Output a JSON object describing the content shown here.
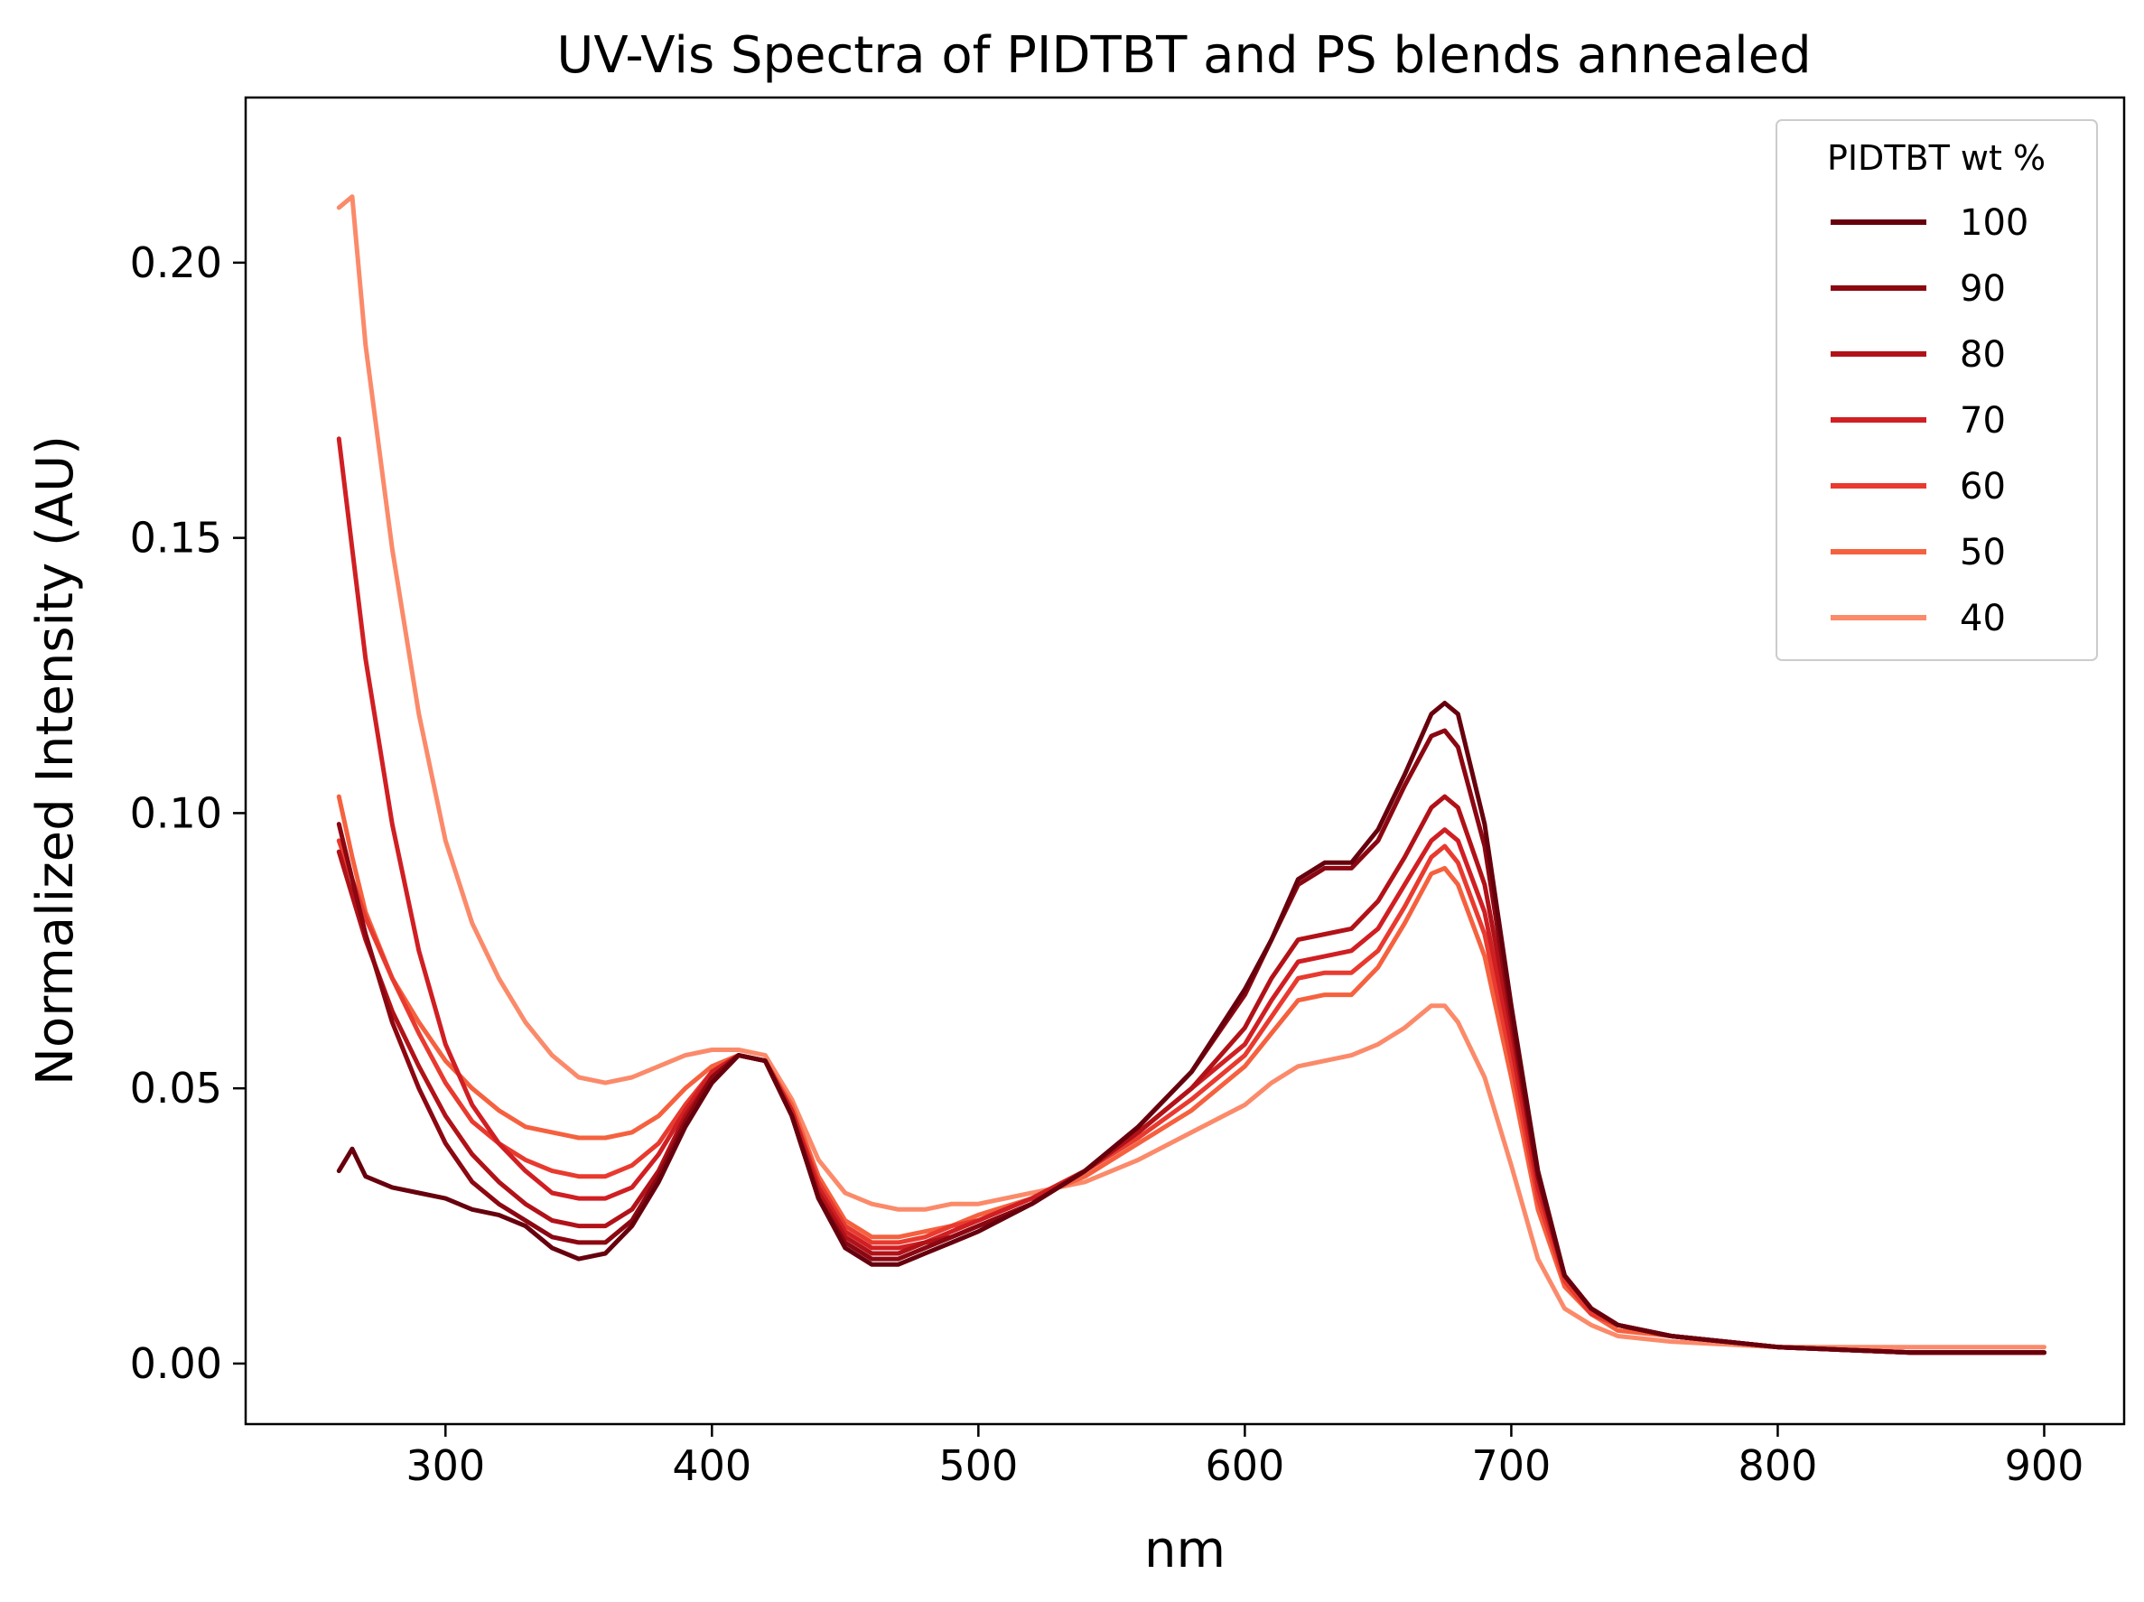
{
  "chart_data": {
    "type": "line",
    "title": "UV-Vis Spectra of PIDTBT and PS blends annealed",
    "xlabel": "nm",
    "ylabel": "Normalized Intensity (AU)",
    "xlim": [
      225,
      930
    ],
    "ylim": [
      -0.011,
      0.23
    ],
    "xticks": [
      300,
      400,
      500,
      600,
      700,
      800,
      900
    ],
    "yticks": [
      0.0,
      0.05,
      0.1,
      0.15,
      0.2
    ],
    "xtick_labels": [
      "300",
      "400",
      "500",
      "600",
      "700",
      "800",
      "900"
    ],
    "ytick_labels": [
      "0.00",
      "0.05",
      "0.10",
      "0.15",
      "0.20"
    ],
    "grid": false,
    "legend": {
      "title": "PIDTBT wt %",
      "position": "top-right"
    },
    "x": [
      260,
      265,
      270,
      280,
      290,
      300,
      310,
      320,
      330,
      340,
      350,
      360,
      370,
      380,
      390,
      400,
      410,
      420,
      430,
      440,
      450,
      460,
      470,
      480,
      490,
      500,
      520,
      540,
      560,
      580,
      600,
      610,
      620,
      630,
      640,
      650,
      660,
      670,
      675,
      680,
      690,
      700,
      710,
      720,
      730,
      740,
      760,
      800,
      850,
      900
    ],
    "series": [
      {
        "name": "100",
        "color": "#67000d",
        "values": [
          0.035,
          0.039,
          0.034,
          0.032,
          0.031,
          0.03,
          0.028,
          0.027,
          0.025,
          0.021,
          0.019,
          0.02,
          0.025,
          0.033,
          0.043,
          0.051,
          0.056,
          0.055,
          0.045,
          0.03,
          0.021,
          0.018,
          0.018,
          0.02,
          0.022,
          0.024,
          0.029,
          0.035,
          0.043,
          0.053,
          0.068,
          0.077,
          0.088,
          0.091,
          0.091,
          0.097,
          0.107,
          0.118,
          0.12,
          0.118,
          0.098,
          0.065,
          0.035,
          0.016,
          0.01,
          0.007,
          0.005,
          0.003,
          0.002,
          0.002
        ]
      },
      {
        "name": "90",
        "color": "#8b0711",
        "values": [
          0.098,
          0.088,
          0.078,
          0.062,
          0.05,
          0.04,
          0.033,
          0.029,
          0.026,
          0.023,
          0.022,
          0.022,
          0.026,
          0.034,
          0.044,
          0.052,
          0.056,
          0.055,
          0.045,
          0.03,
          0.022,
          0.019,
          0.019,
          0.021,
          0.023,
          0.025,
          0.029,
          0.035,
          0.043,
          0.053,
          0.067,
          0.077,
          0.087,
          0.09,
          0.09,
          0.095,
          0.105,
          0.114,
          0.115,
          0.112,
          0.094,
          0.063,
          0.034,
          0.016,
          0.01,
          0.007,
          0.005,
          0.003,
          0.002,
          0.002
        ]
      },
      {
        "name": "80",
        "color": "#b11218",
        "values": [
          0.093,
          0.085,
          0.077,
          0.064,
          0.054,
          0.045,
          0.038,
          0.033,
          0.029,
          0.026,
          0.025,
          0.025,
          0.028,
          0.035,
          0.045,
          0.052,
          0.056,
          0.055,
          0.045,
          0.031,
          0.023,
          0.02,
          0.02,
          0.022,
          0.023,
          0.025,
          0.029,
          0.035,
          0.042,
          0.05,
          0.061,
          0.07,
          0.077,
          0.078,
          0.079,
          0.084,
          0.092,
          0.101,
          0.103,
          0.101,
          0.087,
          0.061,
          0.034,
          0.016,
          0.01,
          0.007,
          0.005,
          0.003,
          0.002,
          0.002
        ]
      },
      {
        "name": "70",
        "color": "#d01f23",
        "values": [
          0.168,
          0.148,
          0.128,
          0.098,
          0.075,
          0.058,
          0.047,
          0.04,
          0.035,
          0.031,
          0.03,
          0.03,
          0.032,
          0.038,
          0.046,
          0.053,
          0.056,
          0.055,
          0.046,
          0.032,
          0.024,
          0.021,
          0.021,
          0.022,
          0.024,
          0.026,
          0.03,
          0.035,
          0.042,
          0.05,
          0.058,
          0.066,
          0.073,
          0.074,
          0.075,
          0.079,
          0.087,
          0.095,
          0.097,
          0.095,
          0.082,
          0.058,
          0.032,
          0.016,
          0.01,
          0.007,
          0.005,
          0.003,
          0.002,
          0.002
        ]
      },
      {
        "name": "60",
        "color": "#e83a2f",
        "values": [
          0.095,
          0.088,
          0.081,
          0.07,
          0.06,
          0.051,
          0.044,
          0.04,
          0.037,
          0.035,
          0.034,
          0.034,
          0.036,
          0.04,
          0.047,
          0.053,
          0.056,
          0.055,
          0.046,
          0.033,
          0.025,
          0.022,
          0.022,
          0.023,
          0.025,
          0.026,
          0.03,
          0.035,
          0.041,
          0.048,
          0.056,
          0.063,
          0.07,
          0.071,
          0.071,
          0.075,
          0.083,
          0.092,
          0.094,
          0.091,
          0.078,
          0.055,
          0.03,
          0.015,
          0.009,
          0.007,
          0.005,
          0.003,
          0.002,
          0.002
        ]
      },
      {
        "name": "50",
        "color": "#f5613f",
        "values": [
          0.103,
          0.092,
          0.082,
          0.07,
          0.062,
          0.055,
          0.05,
          0.046,
          0.043,
          0.042,
          0.041,
          0.041,
          0.042,
          0.045,
          0.05,
          0.054,
          0.056,
          0.055,
          0.047,
          0.034,
          0.026,
          0.023,
          0.023,
          0.024,
          0.025,
          0.027,
          0.03,
          0.034,
          0.04,
          0.046,
          0.054,
          0.06,
          0.066,
          0.067,
          0.067,
          0.072,
          0.08,
          0.089,
          0.09,
          0.087,
          0.074,
          0.052,
          0.028,
          0.014,
          0.009,
          0.006,
          0.005,
          0.003,
          0.002,
          0.002
        ]
      },
      {
        "name": "40",
        "color": "#fb8a6a",
        "values": [
          0.21,
          0.212,
          0.185,
          0.148,
          0.118,
          0.095,
          0.08,
          0.07,
          0.062,
          0.056,
          0.052,
          0.051,
          0.052,
          0.054,
          0.056,
          0.057,
          0.057,
          0.056,
          0.048,
          0.037,
          0.031,
          0.029,
          0.028,
          0.028,
          0.029,
          0.029,
          0.031,
          0.033,
          0.037,
          0.042,
          0.047,
          0.051,
          0.054,
          0.055,
          0.056,
          0.058,
          0.061,
          0.065,
          0.065,
          0.062,
          0.052,
          0.036,
          0.019,
          0.01,
          0.007,
          0.005,
          0.004,
          0.003,
          0.003,
          0.003
        ]
      }
    ]
  }
}
